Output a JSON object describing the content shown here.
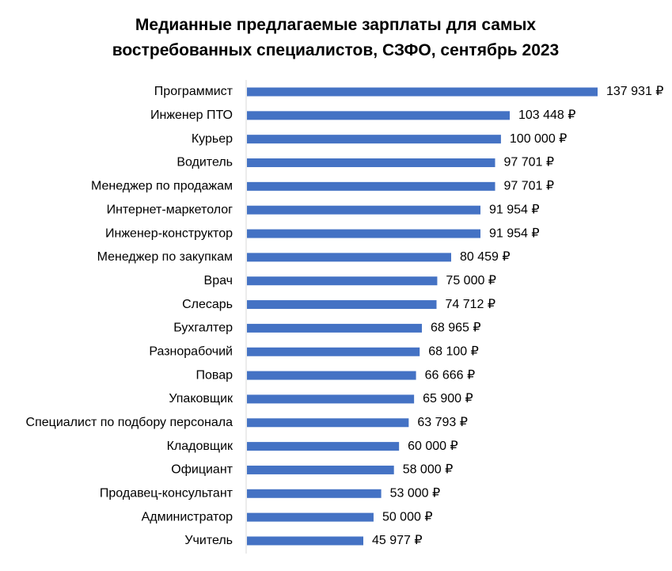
{
  "chart_data": {
    "type": "bar",
    "orientation": "horizontal",
    "title_lines": [
      "Медианные предлагаемые зарплаты для самых",
      "востребованных специалистов, СЗФО, сентябрь 2023"
    ],
    "categories": [
      "Программист",
      "Инженер ПТО",
      "Курьер",
      "Водитель",
      "Менеджер по продажам",
      "Интернет-маркетолог",
      "Инженер-конструктор",
      "Менеджер по закупкам",
      "Врач",
      "Слесарь",
      "Бухгалтер",
      "Разнорабочий",
      "Повар",
      "Упаковщик",
      "Специалист по подбору персонала",
      "Кладовщик",
      "Официант",
      "Продавец-консультант",
      "Администратор",
      "Учитель"
    ],
    "values": [
      137931,
      103448,
      100000,
      97701,
      97701,
      91954,
      91954,
      80459,
      75000,
      74712,
      68965,
      68100,
      66666,
      65900,
      63793,
      60000,
      58000,
      53000,
      50000,
      45977
    ],
    "value_labels": [
      "137 931 ₽",
      "103 448 ₽",
      "100 000 ₽",
      "97 701 ₽",
      "97 701 ₽",
      "91 954 ₽",
      "91 954 ₽",
      "80 459 ₽",
      "75 000 ₽",
      "74 712 ₽",
      "68 965 ₽",
      "68 100 ₽",
      "66 666 ₽",
      "65 900 ₽",
      "63 793 ₽",
      "60 000 ₽",
      "58 000 ₽",
      "53 000 ₽",
      "50 000 ₽",
      "45 977 ₽"
    ],
    "xlim": [
      0,
      140000
    ],
    "grid": false,
    "legend": "none",
    "bar_color": "#4472c4"
  }
}
